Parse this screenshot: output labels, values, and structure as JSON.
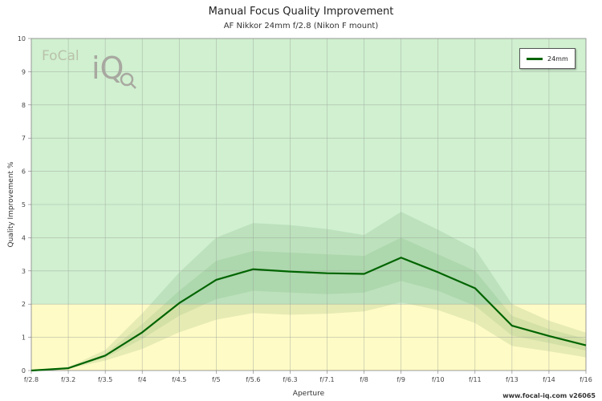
{
  "title": "Manual Focus Quality Improvement",
  "subtitle": "AF Nikkor 24mm f/2.8 (Nikon F mount)",
  "footer": "www.focal-iq.com  v26065",
  "logo": {
    "focal": "FoCal",
    "iq": "iQ"
  },
  "colors": {
    "zone_high": "#d0f0d0",
    "zone_low": "#fffbc6",
    "band": "#2e7d32",
    "line": "#006400",
    "grid": "#9aa39a"
  },
  "chart_data": {
    "type": "line",
    "title": "Manual Focus Quality Improvement",
    "subtitle": "AF Nikkor 24mm f/2.8 (Nikon F mount)",
    "xlabel": "Aperture",
    "ylabel": "Quality Improvement %",
    "ylim": [
      0,
      10
    ],
    "yticks": [
      0,
      1,
      2,
      3,
      4,
      5,
      6,
      7,
      8,
      9,
      10
    ],
    "categories": [
      "f/2.8",
      "f/3.2",
      "f/3.5",
      "f/4",
      "f/4.5",
      "f/5",
      "f/5.6",
      "f/6.3",
      "f/7.1",
      "f/8",
      "f/9",
      "f/10",
      "f/11",
      "f/13",
      "f/14",
      "f/16"
    ],
    "zones": [
      {
        "from": 0,
        "to": 2,
        "color": "#fffbc6"
      },
      {
        "from": 2,
        "to": 10,
        "color": "#d0f0d0"
      }
    ],
    "series": [
      {
        "name": "24mm",
        "values": [
          0.0,
          0.07,
          0.45,
          1.15,
          2.03,
          2.73,
          3.05,
          2.98,
          2.93,
          2.91,
          3.4,
          2.96,
          2.48,
          1.35,
          1.04,
          0.76
        ],
        "upper": [
          0.0,
          0.1,
          0.62,
          1.72,
          2.95,
          4.0,
          4.44,
          4.38,
          4.26,
          4.08,
          4.78,
          4.24,
          3.66,
          2.0,
          1.5,
          1.14
        ],
        "mid_upper": [
          0.0,
          0.08,
          0.5,
          1.4,
          2.4,
          3.3,
          3.6,
          3.55,
          3.5,
          3.45,
          4.0,
          3.5,
          3.0,
          1.65,
          1.25,
          0.95
        ],
        "mid_lower": [
          0.0,
          0.06,
          0.38,
          0.95,
          1.65,
          2.15,
          2.4,
          2.35,
          2.3,
          2.35,
          2.7,
          2.4,
          1.95,
          1.05,
          0.83,
          0.6
        ],
        "lower": [
          0.0,
          0.05,
          0.3,
          0.65,
          1.15,
          1.53,
          1.73,
          1.68,
          1.71,
          1.78,
          2.05,
          1.82,
          1.43,
          0.74,
          0.58,
          0.4
        ]
      }
    ],
    "grid": true,
    "legend": "top-right"
  }
}
